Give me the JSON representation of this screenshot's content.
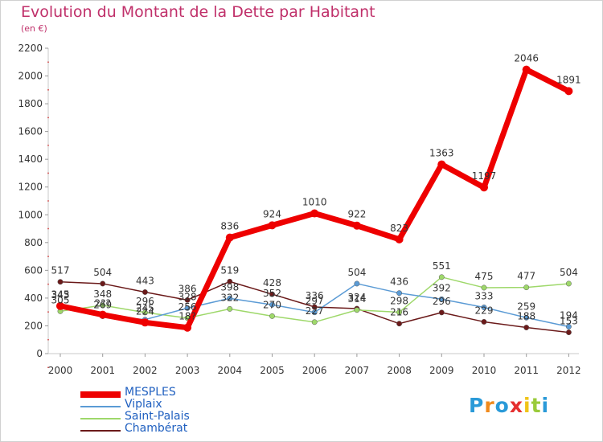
{
  "title": "Evolution du Montant de la Dette par Habitant",
  "subtitle": "(en €)",
  "chart_data": {
    "type": "line",
    "title": "Evolution du Montant de la Dette par Habitant",
    "subtitle": "(en €)",
    "x": [
      2000,
      2001,
      2002,
      2003,
      2004,
      2005,
      2006,
      2007,
      2008,
      2009,
      2010,
      2011,
      2012
    ],
    "ylim": [
      0,
      2200
    ],
    "yticks": [
      0,
      200,
      400,
      600,
      800,
      1000,
      1200,
      1400,
      1600,
      1800,
      2000,
      2200
    ],
    "grid": false,
    "legend_position": "bottom-left",
    "series": [
      {
        "name": "MESPLES",
        "color": "#ee0000",
        "values": [
          343,
          280,
          224,
          187,
          836,
          924,
          1010,
          922,
          823,
          1363,
          1197,
          2046,
          1891
        ],
        "labels": [
          "343",
          "2??",
          "224",
          "18?",
          "836",
          "924",
          "1010",
          "922",
          "823",
          "1363",
          "1197",
          "2046",
          "1891"
        ]
      },
      {
        "name": "Viplaix",
        "color": "#5b9bd5",
        "values": [
          345,
          269,
          245,
          328,
          398,
          352,
          297,
          504,
          436,
          392,
          333,
          259,
          194
        ],
        "labels": [
          "345",
          "269",
          "245",
          "328",
          "398",
          "352",
          "297",
          "504",
          "436",
          "392",
          "333",
          "259",
          "194"
        ]
      },
      {
        "name": "Saint-Palais",
        "color": "#9ed86a",
        "values": [
          305,
          348,
          296,
          256,
          322,
          270,
          227,
          314,
          298,
          551,
          475,
          477,
          504
        ],
        "labels": [
          "305",
          "348",
          "296",
          "256",
          "322",
          "270",
          "227",
          "314",
          "298",
          "551",
          "475",
          "477",
          "504"
        ]
      },
      {
        "name": "Chambérat",
        "color": "#6b1a1a",
        "values": [
          517,
          504,
          443,
          386,
          519,
          428,
          336,
          324,
          216,
          296,
          229,
          188,
          153
        ],
        "labels": [
          "517",
          "504",
          "443",
          "386",
          "519",
          "428",
          "336",
          "324",
          "216",
          "296",
          "229",
          "188",
          "153"
        ]
      }
    ]
  },
  "logo_text": "Proxiti"
}
